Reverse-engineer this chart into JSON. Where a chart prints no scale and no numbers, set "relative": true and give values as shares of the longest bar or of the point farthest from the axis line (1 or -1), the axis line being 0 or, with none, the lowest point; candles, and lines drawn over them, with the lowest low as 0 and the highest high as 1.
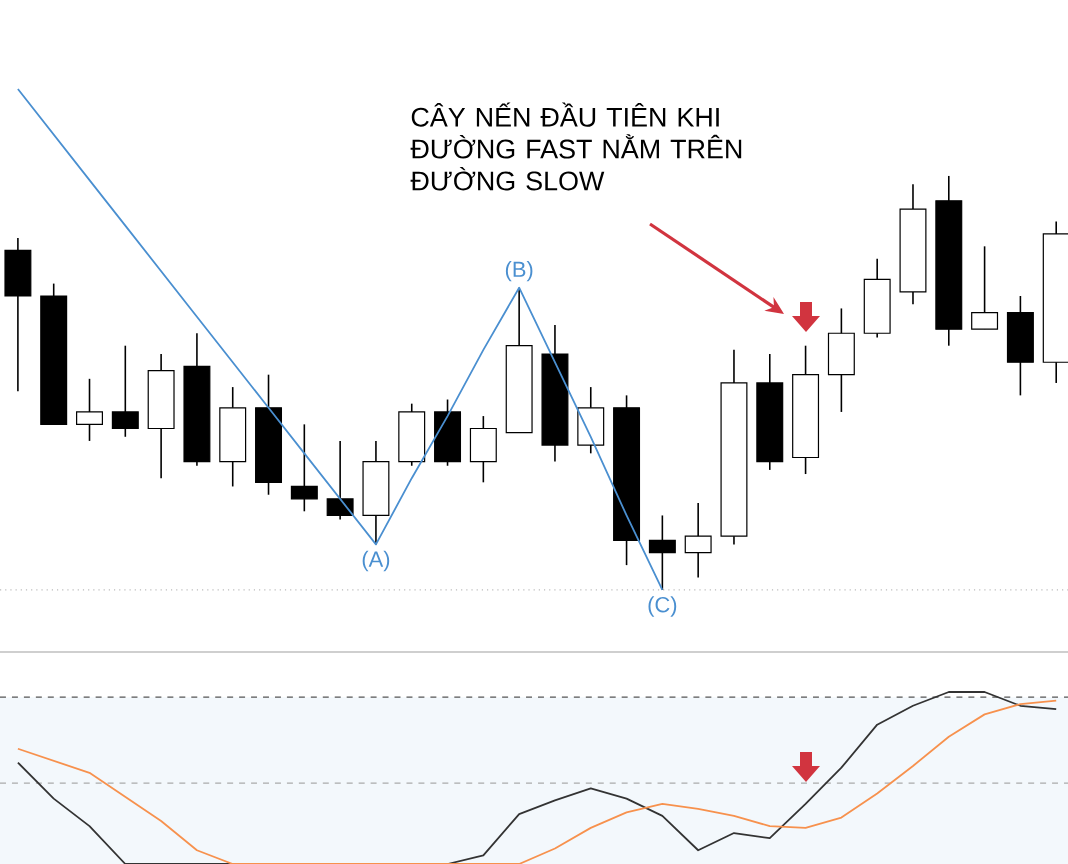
{
  "chart_data": [
    {
      "type": "candlestick",
      "relative": true,
      "categories": [
        null,
        null,
        null,
        null,
        null,
        null,
        null,
        null,
        null,
        null,
        null,
        null,
        null,
        null,
        null,
        null,
        null,
        null,
        null,
        null,
        null,
        null,
        null,
        null,
        null,
        null,
        null,
        null,
        null,
        null
      ],
      "ohlc": [
        [
          0.82,
          0.85,
          0.48,
          0.71
        ],
        [
          0.71,
          0.74,
          0.4,
          0.4
        ],
        [
          0.4,
          0.51,
          0.36,
          0.43
        ],
        [
          0.43,
          0.59,
          0.37,
          0.39
        ],
        [
          0.39,
          0.57,
          0.27,
          0.53
        ],
        [
          0.54,
          0.62,
          0.3,
          0.31
        ],
        [
          0.31,
          0.49,
          0.25,
          0.44
        ],
        [
          0.44,
          0.52,
          0.23,
          0.26
        ],
        [
          0.25,
          0.4,
          0.19,
          0.22
        ],
        [
          0.22,
          0.36,
          0.17,
          0.18
        ],
        [
          0.18,
          0.36,
          0.11,
          0.31
        ],
        [
          0.31,
          0.45,
          0.3,
          0.43
        ],
        [
          0.43,
          0.46,
          0.3,
          0.31
        ],
        [
          0.31,
          0.42,
          0.26,
          0.39
        ],
        [
          0.38,
          0.73,
          0.38,
          0.59
        ],
        [
          0.57,
          0.64,
          0.31,
          0.35
        ],
        [
          0.35,
          0.49,
          0.33,
          0.44
        ],
        [
          0.44,
          0.47,
          0.06,
          0.12
        ],
        [
          0.12,
          0.18,
          0.0,
          0.09
        ],
        [
          0.09,
          0.21,
          0.03,
          0.13
        ],
        [
          0.13,
          0.58,
          0.11,
          0.5
        ],
        [
          0.5,
          0.57,
          0.29,
          0.31
        ],
        [
          0.32,
          0.59,
          0.28,
          0.52
        ],
        [
          0.52,
          0.68,
          0.43,
          0.62
        ],
        [
          0.62,
          0.8,
          0.61,
          0.75
        ],
        [
          0.72,
          0.98,
          0.69,
          0.92
        ],
        [
          0.94,
          1.0,
          0.59,
          0.63
        ],
        [
          0.63,
          0.83,
          0.63,
          0.67
        ],
        [
          0.67,
          0.71,
          0.47,
          0.55
        ],
        [
          0.55,
          0.89,
          0.5,
          0.86
        ]
      ],
      "series": [
        {
          "type": "line",
          "color": "#4a8fd0",
          "values": [
            1.21,
            1.1,
            0.99,
            0.88,
            0.77,
            0.66,
            0.55,
            0.44,
            0.33,
            0.22,
            0.11,
            0.27,
            0.42,
            0.58,
            0.73,
            0.55,
            0.37,
            0.18,
            0.0,
            null,
            null,
            null,
            null,
            null,
            null,
            null,
            null,
            null,
            null,
            null
          ]
        }
      ],
      "ref_lines": [
        {
          "axis": "y",
          "value": 0.0,
          "line_style": "dotted",
          "color": "#bbbbbb"
        }
      ],
      "annotations": [
        "(A)",
        "(B)",
        "(C)",
        "CÂY NẾN ĐẦU TIÊN KHI ĐƯỜNG FAST NẰM TRÊN ĐƯỜNG SLOW"
      ]
    },
    {
      "type": "line",
      "relative": true,
      "categories": [
        null,
        null,
        null,
        null,
        null,
        null,
        null,
        null,
        null,
        null,
        null,
        null,
        null,
        null,
        null,
        null,
        null,
        null,
        null,
        null,
        null,
        null,
        null,
        null,
        null,
        null,
        null,
        null,
        null,
        null
      ],
      "series": [
        {
          "color": "#333333",
          "values": [
            0.59,
            0.38,
            0.22,
            0.0,
            0.0,
            0.0,
            0.0,
            0.0,
            0.0,
            0.0,
            0.0,
            0.0,
            0.0,
            0.05,
            0.29,
            0.37,
            0.44,
            0.38,
            0.28,
            0.08,
            0.18,
            0.15,
            0.35,
            0.56,
            0.81,
            0.92,
            1.0,
            1.0,
            0.92,
            0.9
          ]
        },
        {
          "color": "#f7914d",
          "values": [
            0.67,
            0.6,
            0.53,
            0.39,
            0.25,
            0.08,
            0.0,
            0.0,
            0.0,
            0.0,
            0.0,
            0.0,
            0.0,
            0.0,
            0.0,
            0.09,
            0.21,
            0.3,
            0.35,
            0.32,
            0.28,
            0.22,
            0.21,
            0.27,
            0.41,
            0.57,
            0.74,
            0.87,
            0.93,
            0.95
          ]
        }
      ],
      "ref_lines": [
        {
          "axis": "y",
          "value": 0.97,
          "line_style": "dashed",
          "color": "#555555"
        },
        {
          "axis": "y",
          "value": 0.47,
          "line_style": "dashed",
          "color": "#aaaaaa"
        }
      ],
      "bands": [
        {
          "axis": "y",
          "from": 0.0,
          "to": 0.97,
          "color": "#f3f8fc"
        }
      ]
    }
  ]
}
